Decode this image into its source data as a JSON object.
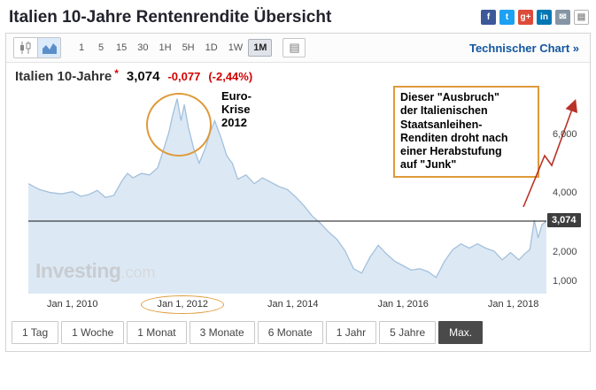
{
  "header": {
    "title": "Italien 10-Jahre Rentenrendite Übersicht",
    "social": [
      {
        "name": "facebook",
        "glyph": "f",
        "color": "#3b5998"
      },
      {
        "name": "twitter",
        "glyph": "t",
        "color": "#1da1f2"
      },
      {
        "name": "googleplus",
        "glyph": "g+",
        "color": "#dd4b39"
      },
      {
        "name": "linkedin",
        "glyph": "in",
        "color": "#0077b5"
      },
      {
        "name": "email",
        "glyph": "✉",
        "color": "#8595a5"
      },
      {
        "name": "print",
        "glyph": "▤",
        "color": "#ffffff",
        "outline": true
      }
    ]
  },
  "toolbar": {
    "chart_types": [
      {
        "name": "candlestick-chart",
        "active": false
      },
      {
        "name": "area-chart",
        "active": true
      }
    ],
    "intervals": [
      "1",
      "5",
      "15",
      "30",
      "1H",
      "5H",
      "1D",
      "1W",
      "1M"
    ],
    "active_interval": "1M",
    "technical_chart_link": "Technischer Chart »"
  },
  "quote": {
    "name": "Italien 10-Jahre",
    "flag": "*",
    "price": "3,074",
    "change": "-0,077",
    "change_percent": "(-2,44%)"
  },
  "chart_data": {
    "type": "area",
    "title": "Italien 10-Jahre Rentenrendite",
    "xlabel": "",
    "ylabel": "",
    "xlim": [
      2009.2,
      2018.6
    ],
    "ylim": [
      600,
      7600
    ],
    "grid": false,
    "x": [
      2009.2,
      2009.4,
      2009.6,
      2009.8,
      2010.0,
      2010.15,
      2010.3,
      2010.45,
      2010.6,
      2010.75,
      2010.9,
      2011.0,
      2011.1,
      2011.25,
      2011.4,
      2011.55,
      2011.65,
      2011.75,
      2011.82,
      2011.9,
      2011.97,
      2012.03,
      2012.1,
      2012.2,
      2012.3,
      2012.4,
      2012.5,
      2012.58,
      2012.7,
      2012.8,
      2012.9,
      2013.0,
      2013.15,
      2013.3,
      2013.45,
      2013.6,
      2013.75,
      2013.9,
      2014.05,
      2014.2,
      2014.35,
      2014.5,
      2014.65,
      2014.8,
      2014.95,
      2015.1,
      2015.25,
      2015.4,
      2015.55,
      2015.7,
      2015.85,
      2016.0,
      2016.15,
      2016.3,
      2016.45,
      2016.6,
      2016.75,
      2016.9,
      2017.05,
      2017.2,
      2017.35,
      2017.5,
      2017.65,
      2017.8,
      2017.95,
      2018.1,
      2018.2,
      2018.3,
      2018.38,
      2018.45,
      2018.52,
      2018.6
    ],
    "values": [
      4350,
      4150,
      4050,
      4000,
      4080,
      3920,
      3980,
      4120,
      3880,
      3950,
      4450,
      4700,
      4550,
      4700,
      4650,
      4900,
      5500,
      6100,
      6700,
      7250,
      6500,
      7050,
      6300,
      5550,
      5050,
      5500,
      6100,
      6500,
      5900,
      5300,
      5050,
      4500,
      4650,
      4350,
      4550,
      4400,
      4250,
      4150,
      3900,
      3600,
      3250,
      3000,
      2700,
      2450,
      2050,
      1450,
      1300,
      1850,
      2250,
      1950,
      1700,
      1550,
      1400,
      1450,
      1350,
      1150,
      1700,
      2100,
      2300,
      2150,
      2300,
      2150,
      2050,
      1750,
      2000,
      1750,
      1950,
      2100,
      3100,
      2500,
      2950,
      3074
    ],
    "current_value": 3074,
    "current_value_label": "3,074",
    "y_ticks": [
      {
        "value": 6000,
        "label": "6,000"
      },
      {
        "value": 4000,
        "label": "4,000"
      },
      {
        "value": 2000,
        "label": "2,000"
      },
      {
        "value": 1000,
        "label": "1,000"
      }
    ],
    "x_ticks": [
      {
        "value": 2010,
        "label": "Jan 1, 2010",
        "circled": false
      },
      {
        "value": 2012,
        "label": "Jan 1, 2012",
        "circled": true
      },
      {
        "value": 2014,
        "label": "Jan 1, 2014",
        "circled": false
      },
      {
        "value": 2016,
        "label": "Jan 1, 2016",
        "circled": false
      },
      {
        "value": 2018,
        "label": "Jan 1, 2018",
        "circled": false
      }
    ],
    "line_color": "#a3c0dc",
    "fill_color": "#dce9f5",
    "current_line_color": "#111111"
  },
  "annotations": {
    "peak_label": "Euro-\nKrise\n2012",
    "callout_text": "Dieser \"Ausbruch\"\nder Italienischen\nStaatsanleihen-\nRenditen droht nach\neiner Herabstufung\nauf \"Junk\"",
    "accent_color": "#df9a3a",
    "arrow_color": "#b93127"
  },
  "watermark": {
    "bold": "Investing",
    "light": ".com"
  },
  "ranges": {
    "items": [
      "1 Tag",
      "1 Woche",
      "1 Monat",
      "3 Monate",
      "6 Monate",
      "1 Jahr",
      "5 Jahre",
      "Max."
    ],
    "active": "Max."
  }
}
